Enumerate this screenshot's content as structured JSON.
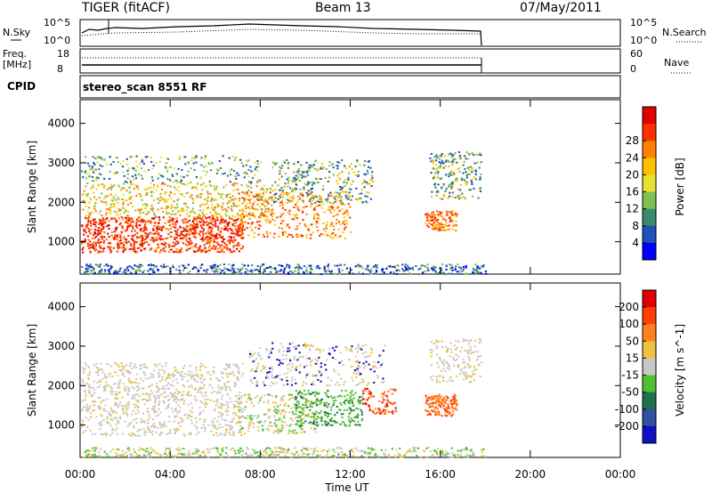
{
  "header": {
    "radar": "TIGER (fitACF)",
    "beam": "Beam 13",
    "date": "07/May/2011"
  },
  "nsky_panel": {
    "left_label": "N.Sky",
    "right_label": "N.Search",
    "left_ticks": [
      "10^5",
      "10^0"
    ],
    "right_ticks": [
      "10^5",
      "10^0"
    ]
  },
  "freq_panel": {
    "left_label_1": "Freq.",
    "left_label_2": "[MHz]",
    "right_label": "Nave",
    "left_ticks": [
      "18",
      "8"
    ],
    "right_ticks": [
      "60",
      "0"
    ]
  },
  "cpid": {
    "label": "CPID",
    "value": "stereo_scan 8551 RF"
  },
  "chart_data": [
    {
      "type": "heatmap",
      "title": "",
      "xlabel": "Time UT",
      "ylabel": "Slant Range [km]",
      "xlim": [
        0,
        24
      ],
      "ylim": [
        180,
        4600
      ],
      "x_ticks": [
        "00:00",
        "04:00",
        "08:00",
        "12:00",
        "16:00",
        "20:00",
        "00:00"
      ],
      "y_ticks": [
        1000,
        2000,
        3000,
        4000
      ],
      "colorbar": {
        "label": "Power [dB]",
        "ticks": [
          "4",
          "8",
          "12",
          "16",
          "20",
          "24",
          "28"
        ],
        "colors": [
          "#0000ff",
          "#2050b8",
          "#3a8a6e",
          "#7fc050",
          "#e8e030",
          "#ffc000",
          "#ff8000",
          "#ff3000",
          "#e00000"
        ]
      }
    },
    {
      "type": "heatmap",
      "title": "",
      "xlabel": "Time UT",
      "ylabel": "Slant Range [km]",
      "xlim": [
        0,
        24
      ],
      "ylim": [
        180,
        4600
      ],
      "x_ticks": [
        "00:00",
        "04:00",
        "08:00",
        "12:00",
        "16:00",
        "20:00",
        "00:00"
      ],
      "y_ticks": [
        1000,
        2000,
        3000,
        4000
      ],
      "colorbar": {
        "label": "Velocity [m s^-1]",
        "ticks": [
          "200",
          "100",
          "50",
          "15",
          "-15",
          "-50",
          "-100",
          "-200"
        ],
        "colors": [
          "#1010c0",
          "#3050a0",
          "#207050",
          "#50c030",
          "#c8c8c8",
          "#f0c040",
          "#ff8020",
          "#ff4000",
          "#e00000"
        ]
      }
    }
  ]
}
